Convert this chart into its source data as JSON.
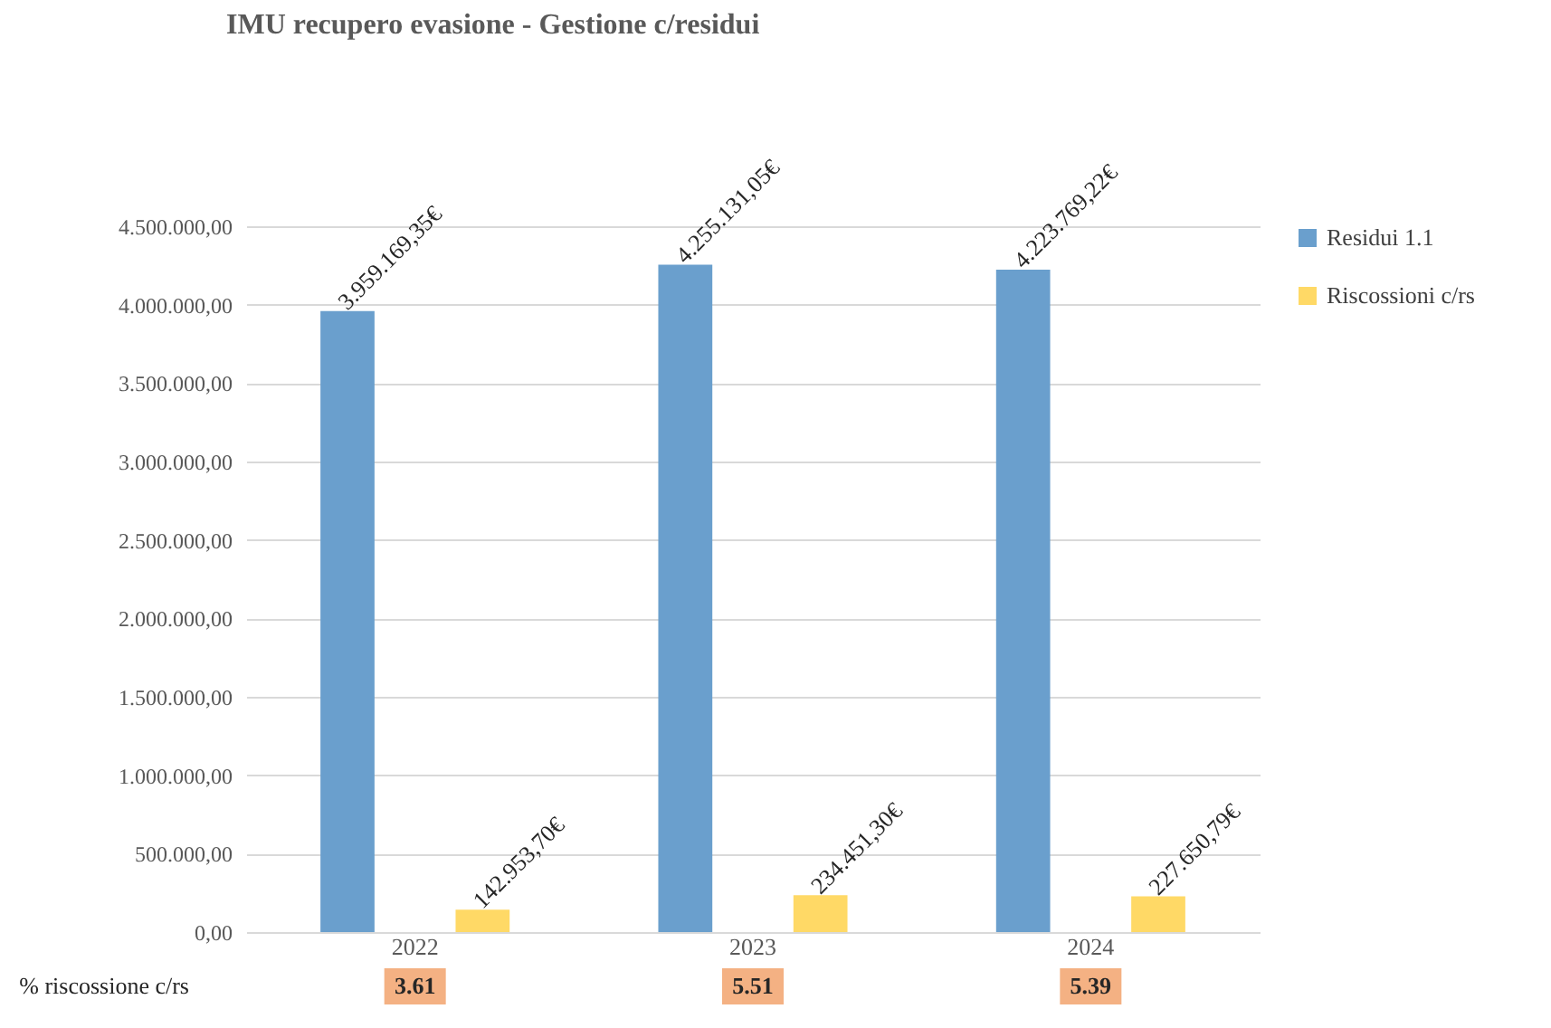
{
  "chart_data": {
    "type": "bar",
    "title": "IMU recupero evasione - Gestione c/residui",
    "categories": [
      "2022",
      "2023",
      "2024"
    ],
    "series": [
      {
        "name": "Residui 1.1",
        "color": "#6a9fcd",
        "values": [
          3959169.35,
          4255131.05,
          4223769.22
        ],
        "value_labels": [
          "3.959.169,35€",
          "4.255.131,05€",
          "4.223.769,22€"
        ]
      },
      {
        "name": "Riscossioni c/rs",
        "color": "#ffd966",
        "values": [
          142953.7,
          234451.3,
          227650.79
        ],
        "value_labels": [
          "142.953,70€",
          "234.451,30€",
          "227.650,79€"
        ]
      }
    ],
    "ylim": [
      0,
      4500000
    ],
    "yticks": [
      {
        "value": 0,
        "label": "0,00"
      },
      {
        "value": 500000,
        "label": "500.000,00"
      },
      {
        "value": 1000000,
        "label": "1.000.000,00"
      },
      {
        "value": 1500000,
        "label": "1.500.000,00"
      },
      {
        "value": 2000000,
        "label": "2.000.000,00"
      },
      {
        "value": 2500000,
        "label": "2.500.000,00"
      },
      {
        "value": 3000000,
        "label": "3.000.000,00"
      },
      {
        "value": 3500000,
        "label": "3.500.000,00"
      },
      {
        "value": 4000000,
        "label": "4.000.000,00"
      },
      {
        "value": 4500000,
        "label": "4.500.000,00"
      }
    ],
    "grid": "y",
    "legend": "right",
    "annotations": [
      "% riscossione c/rs",
      "3.61",
      "5.51",
      "5.39"
    ]
  }
}
